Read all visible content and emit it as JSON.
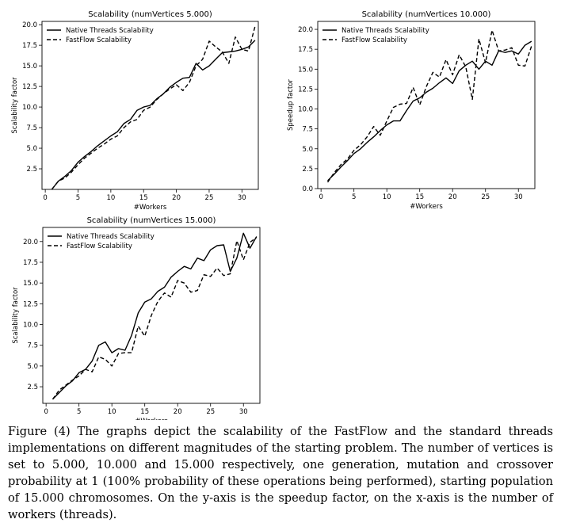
{
  "chart_data": [
    {
      "type": "line",
      "title": "Scalability (numVertices 5.000)",
      "xlabel": "#Workers",
      "ylabel": "Scalability factor",
      "xlim": [
        -0.5,
        32.5
      ],
      "ylim": [
        0,
        20.4
      ],
      "xticks": [
        "0",
        "5",
        "10",
        "15",
        "20",
        "25",
        "30"
      ],
      "yticks": [
        "2.5",
        "5.0",
        "7.5",
        "10.0",
        "12.5",
        "15.0",
        "17.5",
        "20.0"
      ],
      "legend": "top-left",
      "grid": false,
      "x": [
        1,
        2,
        3,
        4,
        5,
        6,
        7,
        8,
        9,
        10,
        11,
        12,
        13,
        14,
        15,
        16,
        17,
        18,
        19,
        20,
        21,
        22,
        23,
        24,
        25,
        26,
        27,
        28,
        29,
        30,
        31,
        32
      ],
      "series": [
        {
          "name": "Native Threads Scalability",
          "style": "solid",
          "values": [
            0,
            1,
            1.6,
            2.3,
            3.3,
            4.0,
            4.6,
            5.3,
            5.9,
            6.5,
            7.0,
            8.0,
            8.5,
            9.6,
            10.0,
            10.2,
            11.0,
            11.6,
            12.4,
            13.0,
            13.5,
            13.6,
            15.3,
            14.5,
            15.0,
            15.8,
            16.6,
            16.7,
            16.8,
            17.0,
            17.3,
            18.1
          ]
        },
        {
          "name": "FastFlow Scalability",
          "style": "dashed",
          "values": [
            0,
            1,
            1.4,
            2.1,
            3.0,
            3.8,
            4.4,
            5.0,
            5.5,
            6.1,
            6.5,
            7.5,
            8.2,
            8.5,
            9.6,
            10.0,
            10.9,
            11.6,
            12.2,
            12.7,
            12.0,
            13.0,
            15.0,
            15.8,
            18.0,
            17.3,
            16.7,
            15.3,
            18.5,
            17.0,
            16.8,
            19.8
          ]
        }
      ]
    },
    {
      "type": "line",
      "title": "Scalability (numVertices 10.000)",
      "xlabel": "#Workers",
      "ylabel": "Speedup factor",
      "xlim": [
        -0.5,
        32.5
      ],
      "ylim": [
        0,
        21
      ],
      "xticks": [
        "0",
        "5",
        "10",
        "15",
        "20",
        "25",
        "30"
      ],
      "yticks": [
        "0.0",
        "2.5",
        "5.0",
        "7.5",
        "10.0",
        "12.5",
        "15.0",
        "17.5",
        "20.0"
      ],
      "legend": "top-left",
      "grid": false,
      "x": [
        1,
        2,
        3,
        4,
        5,
        6,
        7,
        8,
        9,
        10,
        11,
        12,
        13,
        14,
        15,
        16,
        17,
        18,
        19,
        20,
        21,
        22,
        23,
        24,
        25,
        26,
        27,
        28,
        29,
        30,
        31,
        32
      ],
      "series": [
        {
          "name": "Native Threads Scalability",
          "style": "solid",
          "values": [
            1.0,
            1.8,
            2.7,
            3.5,
            4.4,
            5.0,
            5.8,
            6.5,
            7.3,
            8.0,
            8.5,
            8.5,
            9.8,
            11.0,
            11.4,
            12.1,
            12.6,
            13.3,
            13.9,
            13.2,
            14.8,
            15.5,
            16.0,
            15.0,
            16.0,
            15.5,
            17.3,
            17.1,
            17.3,
            16.9,
            18.0,
            18.5
          ]
        },
        {
          "name": "FastFlow Scalability",
          "style": "dashed",
          "values": [
            0.8,
            2.0,
            3.0,
            3.7,
            4.8,
            5.5,
            6.5,
            7.8,
            6.7,
            8.5,
            10.2,
            10.6,
            10.7,
            12.7,
            10.5,
            12.8,
            14.6,
            14.0,
            16.2,
            14.3,
            16.8,
            15.3,
            11.2,
            18.8,
            15.8,
            19.9,
            17.3,
            17.4,
            17.7,
            15.5,
            15.4,
            17.9
          ]
        }
      ]
    },
    {
      "type": "line",
      "title": "Scalability (numVertices 15.000)",
      "xlabel": "#Workers",
      "ylabel": "Scalability factor",
      "xlim": [
        -0.5,
        32.5
      ],
      "ylim": [
        0.5,
        21.7
      ],
      "xticks": [
        "0",
        "5",
        "10",
        "15",
        "20",
        "25",
        "30"
      ],
      "yticks": [
        "2.5",
        "5.0",
        "7.5",
        "10.0",
        "12.5",
        "15.0",
        "17.5",
        "20.0"
      ],
      "legend": "top-left",
      "grid": false,
      "x": [
        1,
        2,
        3,
        4,
        5,
        6,
        7,
        8,
        9,
        10,
        11,
        12,
        13,
        14,
        15,
        16,
        17,
        18,
        19,
        20,
        21,
        22,
        23,
        24,
        25,
        26,
        27,
        28,
        29,
        30,
        31,
        32
      ],
      "series": [
        {
          "name": "Native Threads Scalability",
          "style": "solid",
          "values": [
            1.0,
            1.8,
            2.6,
            3.2,
            4.2,
            4.6,
            5.6,
            7.5,
            7.9,
            6.6,
            7.1,
            6.9,
            8.7,
            11.4,
            12.7,
            13.1,
            14.0,
            14.5,
            15.7,
            16.4,
            17.0,
            16.7,
            18.0,
            17.7,
            19.0,
            19.5,
            19.6,
            16.4,
            18.0,
            21.0,
            19.2,
            20.6
          ]
        },
        {
          "name": "FastFlow Scalability",
          "style": "dashed",
          "values": [
            1.0,
            2.1,
            2.7,
            3.3,
            3.8,
            4.6,
            4.3,
            6.1,
            5.8,
            5.0,
            6.5,
            6.6,
            6.6,
            9.8,
            8.6,
            11.1,
            12.8,
            13.8,
            13.3,
            15.3,
            15.0,
            13.9,
            14.1,
            16.0,
            15.8,
            16.8,
            15.9,
            16.1,
            20.1,
            17.8,
            19.9,
            20.5
          ]
        }
      ]
    }
  ],
  "caption": "Figure (4)   The graphs depict the scalability of the FastFlow and the standard threads implementations on different magnitudes of the starting problem.  The number of vertices is set to 5.000, 10.000 and 15.000 respectively, one generation, mutation and crossover probability at 1 (100% probability of these operations being performed), starting population of 15.000 chromosomes. On the y-axis is the speedup factor, on the x-axis is the number of workers (threads)."
}
